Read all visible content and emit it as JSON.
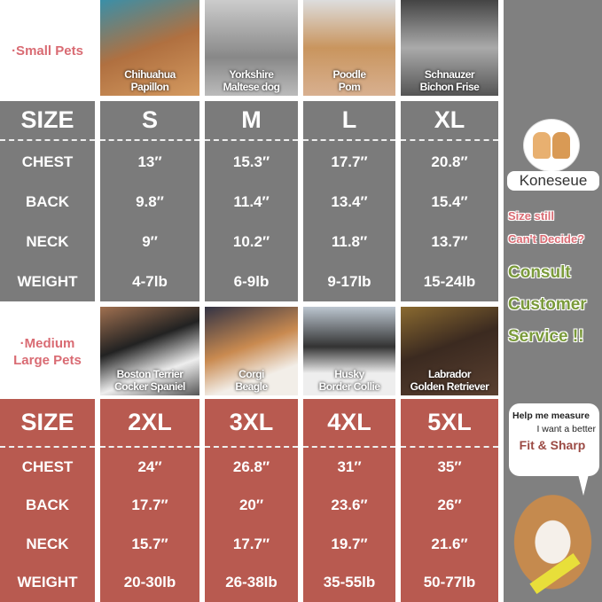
{
  "small_section": {
    "label": "·Small Pets",
    "breeds": [
      {
        "line1": "Chihuahua",
        "line2": "Papillon"
      },
      {
        "line1": "Yorkshire",
        "line2": "Maltese dog"
      },
      {
        "line1": "Poodle",
        "line2": "Pom"
      },
      {
        "line1": "Schnauzer",
        "line2": "Bichon Frise"
      }
    ],
    "header": [
      "SIZE",
      "S",
      "M",
      "L",
      "XL"
    ],
    "rows": [
      {
        "label": "CHEST",
        "values": [
          "13′′",
          "15.3′′",
          "17.7′′",
          "20.8′′"
        ]
      },
      {
        "label": "BACK",
        "values": [
          "9.8′′",
          "11.4′′",
          "13.4′′",
          "15.4′′"
        ]
      },
      {
        "label": "NECK",
        "values": [
          "9′′",
          "10.2′′",
          "11.8′′",
          "13.7′′"
        ]
      },
      {
        "label": "WEIGHT",
        "values": [
          "4-7lb",
          "6-9lb",
          "9-17lb",
          "15-24lb"
        ]
      }
    ]
  },
  "large_section": {
    "label_line1": "·Medium",
    "label_line2": "Large Pets",
    "breeds": [
      {
        "line1": "Boston Terrier",
        "line2": "Cocker Spaniel"
      },
      {
        "line1": "Corgi",
        "line2": "Beagle"
      },
      {
        "line1": "Husky",
        "line2": "Border Collie"
      },
      {
        "line1": "Labrador",
        "line2": "Golden Retriever"
      }
    ],
    "header": [
      "SIZE",
      "2XL",
      "3XL",
      "4XL",
      "5XL"
    ],
    "rows": [
      {
        "label": "CHEST",
        "values": [
          "24′′",
          "26.8′′",
          "31′′",
          "35′′"
        ]
      },
      {
        "label": "BACK",
        "values": [
          "17.7′′",
          "20′′",
          "23.6′′",
          "26′′"
        ]
      },
      {
        "label": "NECK",
        "values": [
          "15.7′′",
          "17.7′′",
          "19.7′′",
          "21.6′′"
        ]
      },
      {
        "label": "WEIGHT",
        "values": [
          "20-30lb",
          "26-38lb",
          "35-55lb",
          "50-77lb"
        ]
      }
    ]
  },
  "sidebar": {
    "brand": "Koneseue",
    "line1": "Size still",
    "line2": "Can't Decide?",
    "cta1": "Consult",
    "cta2": "Customer",
    "cta3": "Service !!",
    "bubble_line1": "Help me measure",
    "bubble_line2": "I want a better",
    "bubble_line3": "Fit & Sharp"
  },
  "colors": {
    "gray": "#7b7b7b",
    "red": "#b85a50",
    "pink_text": "#d96b73",
    "green_text": "#7a9a3a"
  }
}
